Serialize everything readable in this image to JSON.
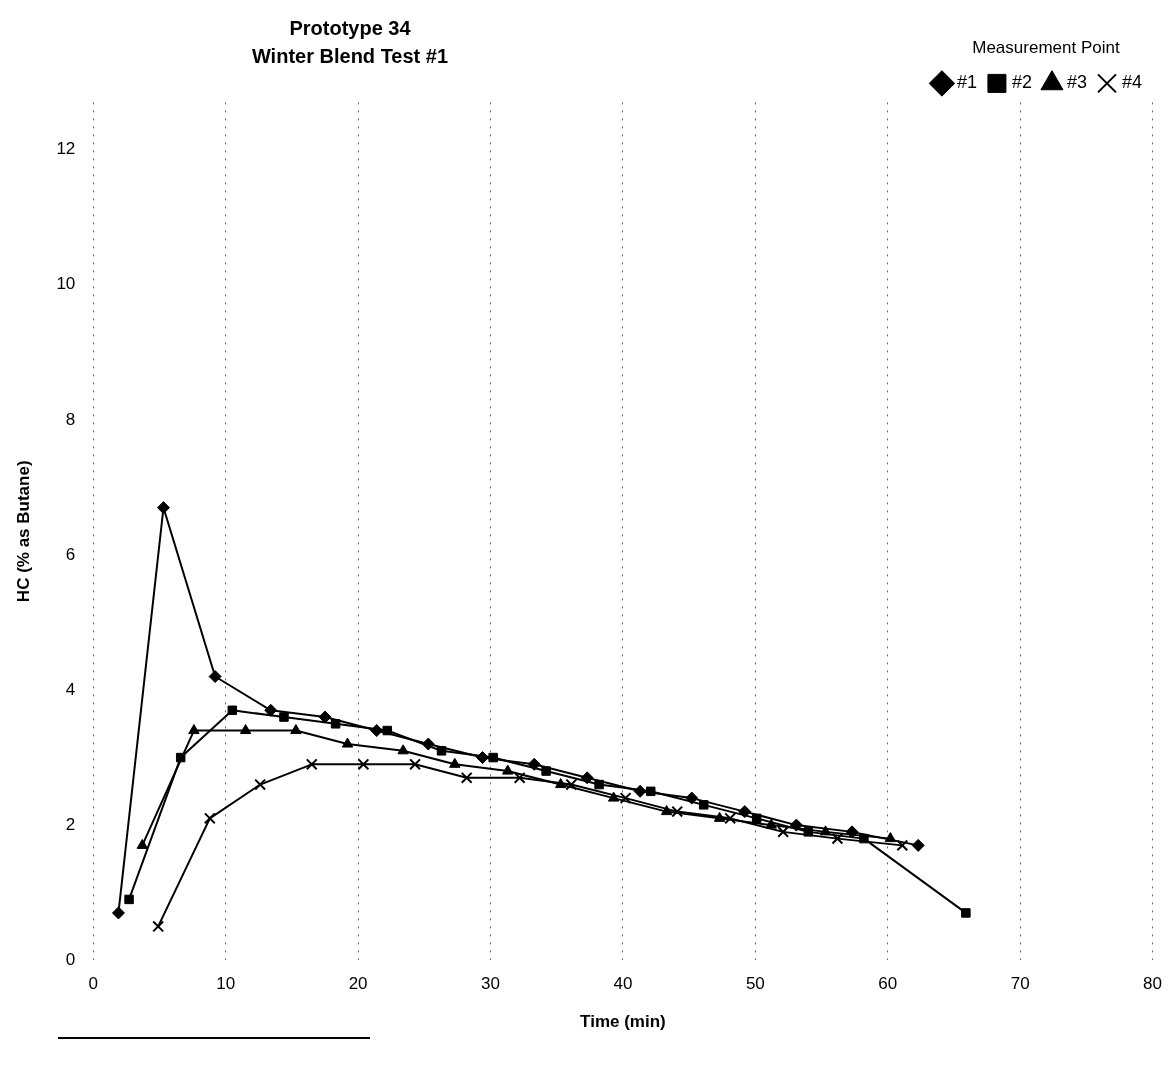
{
  "chart_data": {
    "type": "line",
    "title": "Prototype 34\nWinter Blend Test #1",
    "xlabel": "Time (min)",
    "ylabel": "HC (% as Butane)",
    "legend_title": "Measurement Point",
    "xlim": [
      0,
      80
    ],
    "xticks": [
      0,
      10,
      20,
      30,
      40,
      50,
      60,
      70,
      80
    ],
    "ylim": [
      0,
      12.7
    ],
    "yticks": [
      0,
      2,
      4,
      6,
      8,
      10,
      12
    ],
    "grid": "x",
    "legend": "top right",
    "line_style": "solid",
    "series": [
      {
        "name": "#1",
        "color": "#000000",
        "marker": "diamond",
        "x": [
          1.9,
          5.3,
          9.2,
          13.4,
          17.5,
          21.4,
          25.3,
          29.4,
          33.3,
          37.3,
          41.3,
          45.2,
          49.2,
          53.1,
          57.3,
          62.3
        ],
        "values": [
          0.7,
          6.7,
          4.2,
          3.7,
          3.6,
          3.4,
          3.2,
          3.0,
          2.9,
          2.7,
          2.5,
          2.4,
          2.2,
          2.0,
          1.9,
          1.7
        ]
      },
      {
        "name": "#2",
        "color": "#000000",
        "marker": "square",
        "x": [
          2.7,
          6.6,
          10.5,
          14.4,
          18.3,
          22.2,
          26.3,
          30.2,
          34.2,
          38.2,
          42.1,
          46.1,
          50.1,
          54.0,
          58.2,
          65.9
        ],
        "values": [
          0.9,
          3.0,
          3.7,
          3.6,
          3.5,
          3.4,
          3.1,
          3.0,
          2.8,
          2.6,
          2.5,
          2.3,
          2.1,
          1.9,
          1.8,
          0.7
        ]
      },
      {
        "name": "#3",
        "color": "#000000",
        "marker": "triangle",
        "x": [
          3.7,
          7.6,
          11.5,
          15.3,
          19.2,
          23.4,
          27.3,
          31.3,
          35.3,
          39.3,
          43.3,
          47.3,
          51.2,
          55.3,
          60.2
        ],
        "values": [
          1.7,
          3.4,
          3.4,
          3.4,
          3.2,
          3.1,
          2.9,
          2.8,
          2.6,
          2.4,
          2.2,
          2.1,
          2.0,
          1.9,
          1.8
        ]
      },
      {
        "name": "#4",
        "color": "#000000",
        "marker": "cross",
        "x": [
          4.9,
          8.8,
          12.6,
          16.5,
          20.4,
          24.3,
          28.2,
          32.2,
          36.1,
          40.2,
          44.1,
          48.1,
          52.1,
          56.2,
          61.1
        ],
        "values": [
          0.5,
          2.1,
          2.6,
          2.9,
          2.9,
          2.9,
          2.7,
          2.7,
          2.6,
          2.4,
          2.2,
          2.1,
          1.9,
          1.8,
          1.7
        ]
      }
    ]
  }
}
